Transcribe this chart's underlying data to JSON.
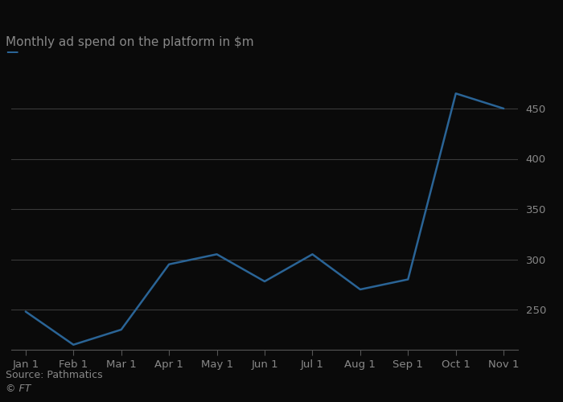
{
  "x_labels": [
    "Jan 1",
    "Feb 1",
    "Mar 1",
    "Apr 1",
    "May 1",
    "Jun 1",
    "Jul 1",
    "Aug 1",
    "Sep 1",
    "Oct 1",
    "Nov 1"
  ],
  "y_values": [
    248,
    215,
    230,
    295,
    305,
    278,
    305,
    270,
    280,
    465,
    450
  ],
  "line_color": "#2a6496",
  "line_width": 1.8,
  "ylabel": "Monthly ad spend on the platform in $m",
  "ylim": [
    210,
    490
  ],
  "yticks": [
    250,
    300,
    350,
    400,
    450
  ],
  "grid_color": "#3a3a3a",
  "bg_color": "#0a0a0a",
  "text_color": "#888888",
  "source_text": "Source: Pathmatics",
  "source_text2": "© FT",
  "title_fontsize": 11,
  "tick_fontsize": 9.5,
  "source_fontsize": 9
}
